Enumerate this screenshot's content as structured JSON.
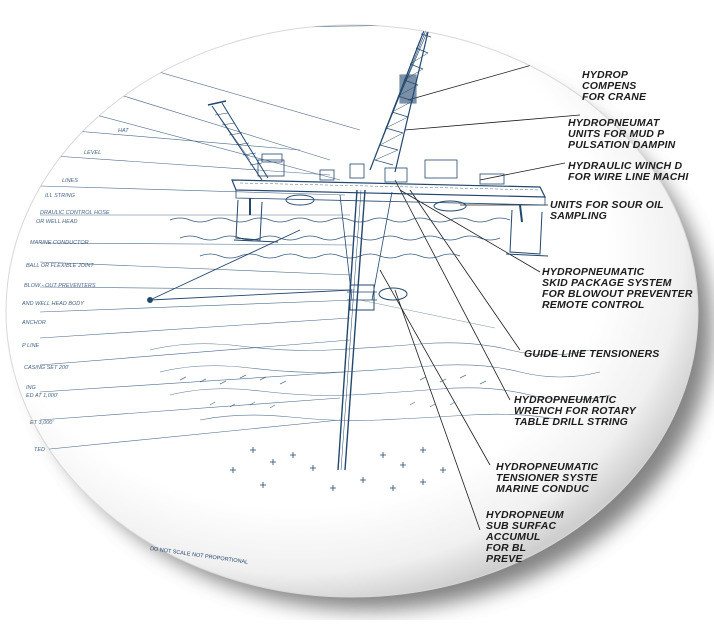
{
  "diagram": {
    "callouts": [
      {
        "id": "crane-comp",
        "lines": [
          "HYDROP",
          "COMPENS",
          "FOR CRANE"
        ]
      },
      {
        "id": "mud-pump",
        "lines": [
          "HYDROPNEUMAT",
          "UNITS FOR MUD P",
          "PULSATION DAMPIN"
        ]
      },
      {
        "id": "winch",
        "lines": [
          "HYDRAULIC WINCH D",
          "FOR WIRE LINE MACHI"
        ]
      },
      {
        "id": "sour-oil",
        "lines": [
          "UNITS FOR SOUR OIL",
          "SAMPLING"
        ]
      },
      {
        "id": "skid",
        "lines": [
          "HYDROPNEUMATIC",
          "SKID PACKAGE SYSTEM",
          "FOR BLOWOUT PREVENTER",
          "REMOTE CONTROL"
        ]
      },
      {
        "id": "guide-line",
        "lines": [
          "GUIDE LINE TENSIONERS"
        ]
      },
      {
        "id": "wrench",
        "lines": [
          "HYDROPNEUMATIC",
          "WRENCH FOR ROTARY",
          "TABLE DRILL STRING"
        ]
      },
      {
        "id": "tensioner",
        "lines": [
          "HYDROPNEUMATIC",
          "TENSIONER SYSTE",
          "MARINE CONDUC"
        ]
      },
      {
        "id": "accumulator",
        "lines": [
          "HYDROPNEUM",
          "SUB SURFAC",
          "ACCUMUL",
          "FOR BL",
          "PREVE"
        ]
      }
    ],
    "left_labels": [
      "HAT",
      "LEVEL",
      "LINES",
      "ILL STRING",
      "DRAULIC CONTROL HOSE",
      "OR WELL HEAD",
      "MARINE CONDUCTOR",
      "BALL OR FLEXIBLE JOINT",
      "BLOW - OUT PREVENTERS",
      "AND WELL HEAD BODY",
      "ANCHOR",
      "P LINE",
      "CASING SET 200'",
      "ING",
      "ED AT 1,000'",
      "ET 3,000'",
      "TED"
    ],
    "footer": "DO NOT SCALE   NOT PROPORTIONAL",
    "colors": {
      "ink": "#23476e",
      "text": "#1c1c1c",
      "shadow": "#6e6e6e"
    }
  }
}
